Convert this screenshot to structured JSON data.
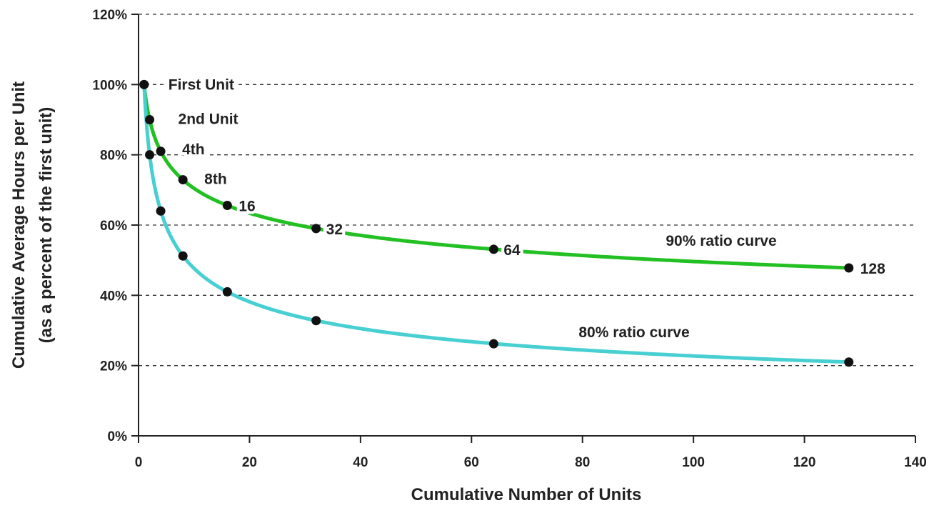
{
  "chart_data": {
    "type": "line",
    "title": "",
    "xlabel": "Cumulative Number of Units",
    "ylabel": "Cumulative Average Hours per Unit",
    "ylabel2": "(as a percent of the first unit)",
    "xlim": [
      0,
      140
    ],
    "ylim": [
      0,
      120
    ],
    "x_ticks": [
      "0",
      "20",
      "40",
      "60",
      "80",
      "100",
      "120",
      "140"
    ],
    "y_ticks": [
      "0%",
      "20%",
      "40%",
      "60%",
      "80%",
      "100%",
      "120%"
    ],
    "grid": "horizontal dashed",
    "colors": {
      "ninety": "#22c022",
      "eighty": "#48cfd2",
      "marker": "#111111"
    },
    "series": [
      {
        "name": "90% ratio curve",
        "color": "#22c022",
        "x": [
          1,
          2,
          4,
          8,
          16,
          32,
          64,
          128
        ],
        "y": [
          100,
          90,
          81,
          72.9,
          65.6,
          59,
          53.1,
          47.8
        ]
      },
      {
        "name": "80% ratio curve",
        "color": "#48cfd2",
        "x": [
          1,
          2,
          4,
          8,
          16,
          32,
          64,
          128
        ],
        "y": [
          100,
          80,
          64,
          51.2,
          41,
          32.8,
          26.2,
          21
        ]
      }
    ],
    "point_labels": [
      "First Unit",
      "2nd Unit",
      "4th",
      "8th",
      "16",
      "32",
      "64",
      "128"
    ]
  }
}
